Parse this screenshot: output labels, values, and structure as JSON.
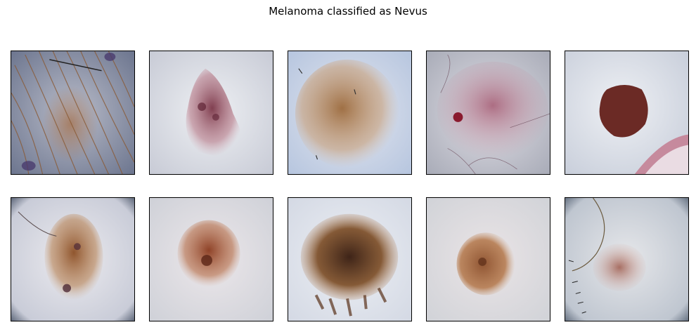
{
  "figure": {
    "title": "Melanoma classified as Nevus"
  },
  "colors": {
    "background": "#ffffff",
    "frame": "#000000"
  }
}
